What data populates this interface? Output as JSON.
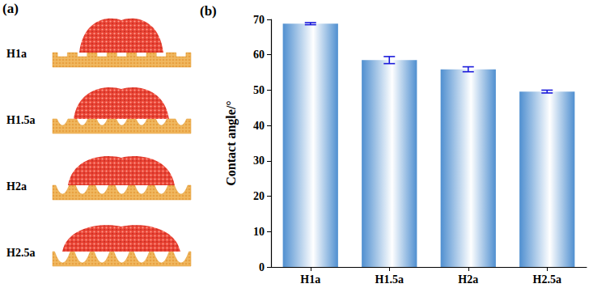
{
  "figure_a": {
    "label": "(a)",
    "rows": [
      "H1a",
      "H1.5a",
      "H2a",
      "H2.5a"
    ]
  },
  "chart_data": {
    "type": "bar",
    "title": "(b)",
    "categories": [
      "H1a",
      "H1.5a",
      "H2a",
      "H2.5a"
    ],
    "values": [
      68.8,
      58.5,
      55.9,
      49.6
    ],
    "errors": [
      0.3,
      1.0,
      0.7,
      0.4
    ],
    "color": "#4f8fd0",
    "y_label": "Contact angle/°",
    "ylim": [
      0,
      70
    ],
    "yticks": [
      0,
      10,
      20,
      30,
      40,
      50,
      60,
      70
    ],
    "grid": false
  }
}
